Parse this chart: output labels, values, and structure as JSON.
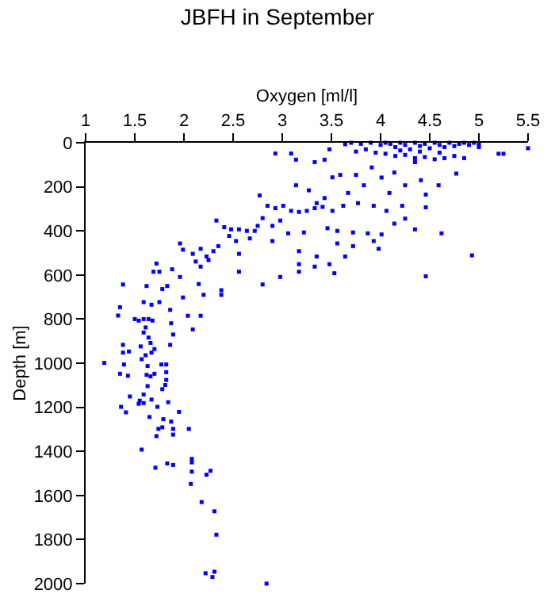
{
  "chart_data": {
    "type": "scatter",
    "title": "JBFH in September",
    "xlabel": "Oxygen [ml/l]",
    "ylabel": "Depth [m]",
    "xlim": [
      1,
      5.5
    ],
    "xticks": [
      1,
      1.5,
      2,
      2.5,
      3,
      3.5,
      4,
      4.5,
      5,
      5.5
    ],
    "ylim": [
      2000,
      0
    ],
    "yticks": [
      0,
      200,
      400,
      600,
      800,
      1000,
      1200,
      1400,
      1600,
      1800,
      2000
    ],
    "marker": "square",
    "legend": false,
    "series": [
      {
        "color": "#0000ff",
        "x": [
          3.7,
          3.8,
          3.9,
          4.0,
          4.05,
          4.1,
          4.15,
          4.2,
          4.25,
          4.3,
          4.35,
          4.4,
          4.45,
          4.5,
          4.55,
          4.6,
          4.65,
          4.7,
          4.75,
          4.8,
          4.85,
          4.9,
          4.95,
          5.0,
          5.0,
          3.75,
          3.85,
          3.95,
          4.05,
          4.15,
          4.25,
          4.35,
          4.45,
          4.55,
          4.65,
          4.75,
          4.85,
          4.4,
          4.6,
          4.2,
          5.5,
          5.25,
          5.2,
          2.93,
          3.09,
          3.14,
          3.33,
          3.43,
          3.48,
          3.64,
          3.51,
          3.59,
          3.67,
          3.75,
          3.83,
          3.91,
          4.01,
          4.09,
          4.14,
          4.25,
          4.35,
          4.41,
          4.77,
          4.59,
          4.46,
          4.46,
          3.14,
          3.27,
          3.35,
          3.43,
          3.51,
          3.62,
          3.77,
          3.93,
          4.06,
          4.14,
          4.22,
          4.25,
          4.35,
          2.77,
          2.85,
          2.93,
          3.01,
          3.09,
          3.17,
          3.25,
          3.33,
          3.41,
          2.98,
          2.8,
          2.33,
          2.41,
          2.48,
          2.56,
          2.64,
          2.72,
          2.75,
          2.9,
          2.46,
          2.53,
          2.67,
          2.9,
          3.06,
          3.22,
          3.46,
          3.56,
          3.72,
          3.87,
          4.01,
          4.62,
          3.56,
          3.72,
          3.93,
          3.98,
          1.96,
          1.99,
          2.09,
          2.17,
          2.23,
          2.3,
          2.35,
          2.56,
          2.12,
          2.25,
          2.17,
          2.56,
          3.17,
          3.17,
          3.35,
          3.48,
          3.33,
          3.17,
          3.53,
          3.64,
          4.93,
          4.46,
          2.98,
          2.8,
          1.72,
          1.75,
          1.69,
          1.88,
          1.96,
          1.38,
          1.62,
          1.78,
          1.83,
          1.99,
          2.15,
          2.2,
          2.38,
          2.38,
          1.59,
          1.67,
          1.75,
          1.86,
          1.35,
          2.04,
          2.17,
          1.33,
          1.5,
          1.54,
          1.59,
          1.64,
          1.68,
          1.87,
          2.09,
          1.61,
          1.59,
          1.64,
          1.89,
          1.66,
          1.56,
          1.38,
          1.86,
          1.7,
          1.38,
          1.44,
          1.67,
          1.61,
          1.57,
          1.19,
          1.39,
          1.63,
          1.77,
          1.82,
          1.82,
          1.35,
          1.43,
          1.62,
          1.66,
          1.7,
          1.82,
          1.81,
          1.63,
          1.78,
          1.59,
          1.45,
          1.55,
          1.67,
          1.84,
          1.54,
          1.59,
          1.73,
          1.36,
          1.41,
          1.95,
          1.65,
          1.79,
          1.87,
          1.78,
          1.74,
          1.89,
          2.05,
          1.72,
          1.89,
          1.57,
          2.08,
          2.08,
          1.71,
          1.83,
          1.89,
          2.08,
          2.27,
          2.23,
          2.07,
          2.18,
          2.31,
          2.33,
          2.22,
          2.31,
          2.29,
          2.84
        ],
        "values": [
          0,
          5,
          0,
          10,
          0,
          5,
          20,
          0,
          10,
          30,
          0,
          15,
          5,
          25,
          0,
          10,
          20,
          0,
          15,
          5,
          0,
          10,
          0,
          5,
          20,
          40,
          30,
          45,
          50,
          60,
          55,
          70,
          65,
          75,
          70,
          60,
          70,
          40,
          45,
          35,
          25,
          50,
          50,
          49,
          49,
          77,
          88,
          77,
          30,
          7,
          157,
          146,
          228,
          146,
          193,
          112,
          158,
          228,
          135,
          193,
          88,
          170,
          140,
          193,
          235,
          293,
          193,
          216,
          274,
          251,
          309,
          286,
          274,
          286,
          309,
          367,
          286,
          344,
          393,
          239,
          286,
          297,
          286,
          309,
          314,
          309,
          297,
          291,
          353,
          342,
          353,
          383,
          393,
          393,
          400,
          400,
          377,
          377,
          423,
          446,
          434,
          446,
          411,
          407,
          388,
          400,
          407,
          411,
          416,
          411,
          457,
          469,
          446,
          481,
          457,
          485,
          504,
          481,
          516,
          492,
          469,
          504,
          539,
          532,
          562,
          585,
          492,
          551,
          516,
          551,
          562,
          585,
          592,
          516,
          511,
          606,
          609,
          643,
          548,
          585,
          585,
          574,
          609,
          643,
          650,
          664,
          650,
          702,
          641,
          690,
          669,
          690,
          723,
          735,
          723,
          758,
          746,
          785,
          785,
          784,
          800,
          807,
          800,
          800,
          807,
          819,
          847,
          838,
          861,
          884,
          870,
          908,
          924,
          917,
          917,
          936,
          952,
          947,
          952,
          964,
          982,
          999,
          1006,
          1013,
          1006,
          1006,
          1041,
          1048,
          1057,
          1053,
          1060,
          1048,
          1076,
          1099,
          1104,
          1118,
          1142,
          1151,
          1170,
          1165,
          1177,
          1184,
          1181,
          1198,
          1198,
          1223,
          1221,
          1244,
          1254,
          1265,
          1291,
          1298,
          1298,
          1298,
          1331,
          1324,
          1392,
          1434,
          1450,
          1474,
          1455,
          1462,
          1492,
          1488,
          1506,
          1548,
          1630,
          1672,
          1778,
          1953,
          1946,
          1970,
          2000
        ]
      }
    ]
  }
}
